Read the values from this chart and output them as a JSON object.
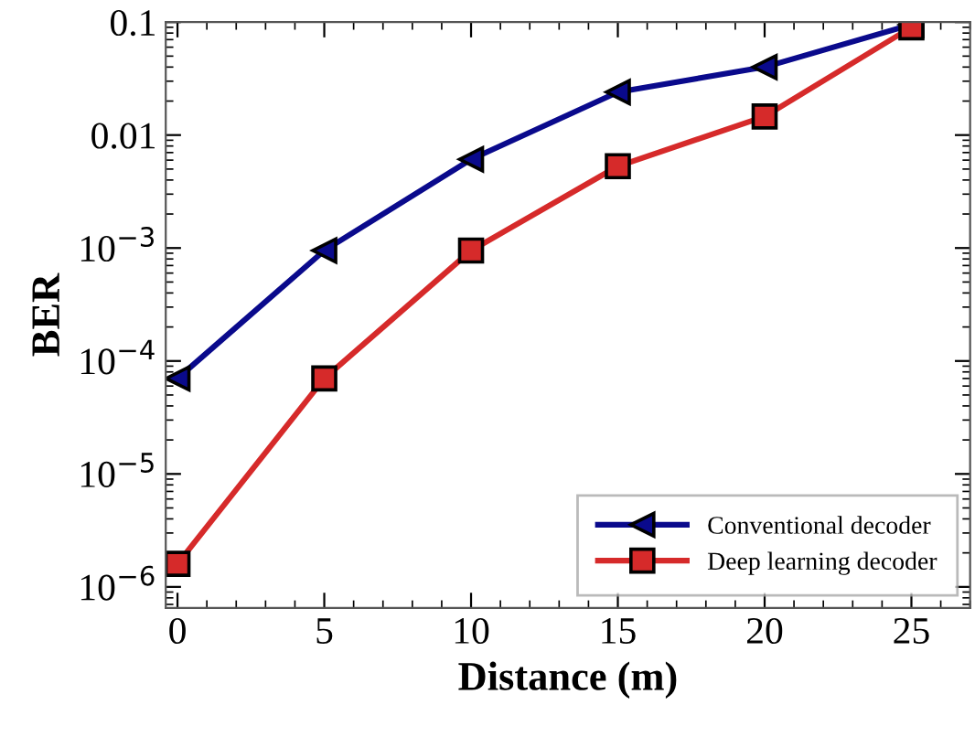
{
  "chart_data": {
    "type": "line",
    "xlabel": "Distance (m)",
    "ylabel": "BER",
    "x": [
      0,
      5,
      10,
      15,
      20,
      25
    ],
    "series": [
      {
        "name": "Conventional decoder",
        "color": "#0a0a8c",
        "marker": "triangle",
        "values": [
          7e-05,
          0.00095,
          0.0061,
          0.024,
          0.04,
          0.095
        ]
      },
      {
        "name": "Deep learning decoder",
        "color": "#d62a2a",
        "marker": "square",
        "values": [
          1.6e-06,
          7e-05,
          0.00095,
          0.0053,
          0.0146,
          0.09
        ]
      }
    ],
    "xlim": [
      -0.4,
      27
    ],
    "xticks": [
      0,
      5,
      10,
      15,
      20,
      25
    ],
    "ylim": [
      6.5e-07,
      0.1
    ],
    "yticks": [
      {
        "value": 1e-06,
        "label": "10$^{−6}$"
      },
      {
        "value": 1e-05,
        "label": "10$^{−5}$"
      },
      {
        "value": 0.0001,
        "label": "10$^{−4}$"
      },
      {
        "value": 0.001,
        "label": "10$^{−3}$"
      },
      0.01,
      0.1
    ],
    "log": true,
    "grid": false,
    "legend": "bottom right",
    "line_style": "solid"
  }
}
